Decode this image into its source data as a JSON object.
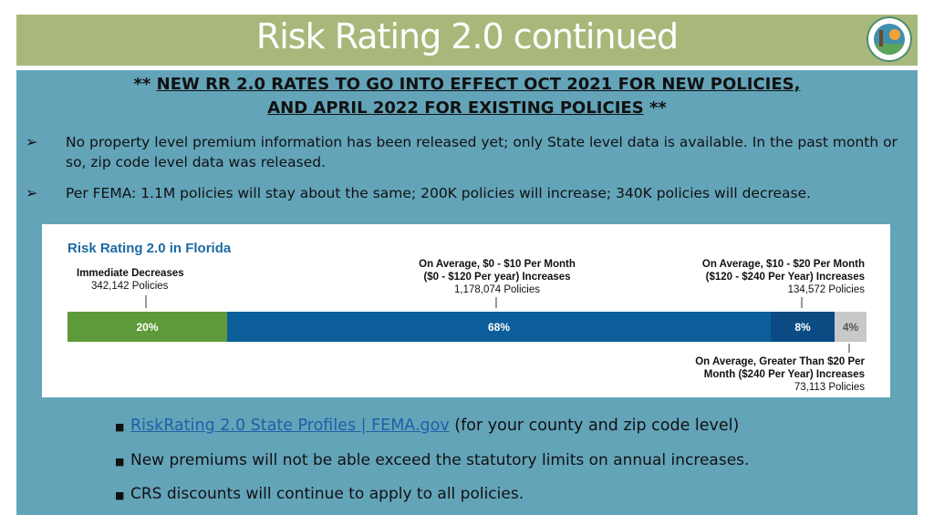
{
  "slide": {
    "title": "Risk Rating 2.0 continued",
    "headline_line1": "NEW RR 2.0 RATES TO GO INTO EFFECT OCT 2021 FOR NEW POLICIES,",
    "headline_line2": "AND APRIL 2022 FOR EXISTING POLICIES",
    "stars": "**",
    "bullets": [
      "No property level premium information has been released yet; only State level data is available. In the past month or so, zip code level data was released.",
      "Per FEMA: 1.1M policies will stay about the same; 200K policies will increase; 340K policies will decrease."
    ],
    "bullet_icon": "arrow-bullet-icon",
    "sub_bullets": {
      "link_text": "RiskRating 2.0 State Profiles | FEMA.gov",
      "link_suffix": "(for your county and zip code level)",
      "item2": "New premiums will not be able exceed the statutory limits on annual increases.",
      "item3": "CRS discounts will continue to apply to all policies."
    }
  },
  "colors": {
    "title_bar": "#a8b87a",
    "panel": "#63a4b9",
    "green": "#5e9a3a",
    "blue": "#0b5e9a",
    "dark_blue": "#0a4b83",
    "gray": "#c8c8c8"
  },
  "chart_data": {
    "type": "bar",
    "title": "Risk Rating 2.0 in Florida",
    "categories": [
      "Immediate Decreases",
      "$0 - $10 Per Month Increases",
      "$10 - $20 Per Month Increases",
      "Greater Than $20 Per Month Increases"
    ],
    "values": [
      20,
      68,
      8,
      4
    ],
    "value_labels": [
      "20%",
      "68%",
      "8%",
      "4%"
    ],
    "annotations": [
      {
        "line1": "Immediate Decreases",
        "line2": "",
        "count": "342,142 Policies"
      },
      {
        "line1": "On Average, $0 - $10 Per Month",
        "line2": "($0 - $120 Per year) Increases",
        "count": "1,178,074 Policies"
      },
      {
        "line1": "On Average, $10 - $20 Per Month",
        "line2": "($120 - $240 Per Year) Increases",
        "count": "134,572 Policies"
      },
      {
        "line1": "On Average, Greater Than $20 Per",
        "line2": "Month ($240 Per Year) Increases",
        "count": "73,113 Policies"
      }
    ]
  }
}
